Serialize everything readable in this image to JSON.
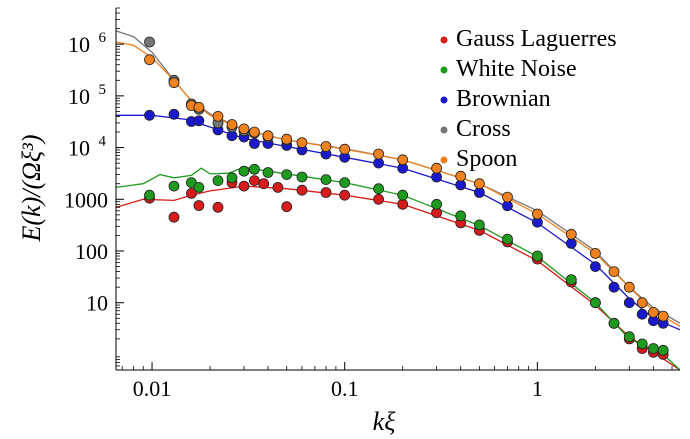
{
  "chart_data": {
    "type": "scatter",
    "title": "",
    "xlabel": "kξ",
    "ylabel": "E(k)/(Ωξ³)",
    "x_scale": "log",
    "y_scale": "log",
    "xlim": [
      0.0065,
      5.5
    ],
    "ylim": [
      0.5,
      5000000
    ],
    "x_ticks": [
      {
        "value": 0.01,
        "label": "0.01"
      },
      {
        "value": 0.1,
        "label": "0.1"
      },
      {
        "value": 1,
        "label": "1"
      }
    ],
    "y_ticks": [
      {
        "value": 10,
        "label": "10"
      },
      {
        "value": 100,
        "label": "100"
      },
      {
        "value": 1000,
        "label": "1000"
      },
      {
        "value": 10000,
        "label": "10",
        "exp": "4"
      },
      {
        "value": 100000,
        "label": "10",
        "exp": "5"
      },
      {
        "value": 1000000,
        "label": "10",
        "exp": "6"
      }
    ],
    "legend_position": "top-right",
    "grid": false,
    "series": [
      {
        "name": "Gauss Laguerres",
        "color": "#d81b1b",
        "points": [
          [
            0.0097,
            1050
          ],
          [
            0.013,
            450
          ],
          [
            0.016,
            1300
          ],
          [
            0.0175,
            760
          ],
          [
            0.022,
            700
          ],
          [
            0.026,
            2100
          ],
          [
            0.03,
            1800
          ],
          [
            0.034,
            2300
          ],
          [
            0.038,
            2000
          ],
          [
            0.045,
            1700
          ],
          [
            0.05,
            720
          ],
          [
            0.06,
            1500
          ],
          [
            0.08,
            1350
          ],
          [
            0.1,
            1200
          ],
          [
            0.15,
            1000
          ],
          [
            0.2,
            800
          ],
          [
            0.3,
            550
          ],
          [
            0.4,
            350
          ],
          [
            0.5,
            250
          ],
          [
            0.7,
            150
          ],
          [
            1.0,
            70
          ],
          [
            1.5,
            25
          ],
          [
            2.0,
            10
          ],
          [
            2.5,
            4
          ],
          [
            3.0,
            2.0
          ],
          [
            3.5,
            1.3
          ],
          [
            4.0,
            1.1
          ],
          [
            4.5,
            1.0
          ]
        ],
        "fit": [
          [
            0.0065,
            700
          ],
          [
            0.009,
            1000
          ],
          [
            0.013,
            950
          ],
          [
            0.016,
            1200
          ],
          [
            0.02,
            1450
          ],
          [
            0.03,
            1800
          ],
          [
            0.05,
            1600
          ],
          [
            0.1,
            1200
          ],
          [
            0.2,
            800
          ],
          [
            0.5,
            250
          ],
          [
            1.0,
            65
          ],
          [
            2.0,
            9
          ],
          [
            3.0,
            2.2
          ],
          [
            4.0,
            1.1
          ],
          [
            5.5,
            0.5
          ]
        ]
      },
      {
        "name": "White Noise",
        "color": "#1e9b1e",
        "points": [
          [
            0.0097,
            1200
          ],
          [
            0.013,
            1800
          ],
          [
            0.016,
            2100
          ],
          [
            0.0175,
            1700
          ],
          [
            0.022,
            2300
          ],
          [
            0.026,
            2600
          ],
          [
            0.03,
            3500
          ],
          [
            0.034,
            3800
          ],
          [
            0.04,
            3300
          ],
          [
            0.05,
            3000
          ],
          [
            0.06,
            2700
          ],
          [
            0.08,
            2400
          ],
          [
            0.1,
            2100
          ],
          [
            0.15,
            1600
          ],
          [
            0.2,
            1200
          ],
          [
            0.3,
            800
          ],
          [
            0.4,
            480
          ],
          [
            0.5,
            320
          ],
          [
            0.7,
            170
          ],
          [
            1.0,
            80
          ],
          [
            1.5,
            28
          ],
          [
            2.0,
            10
          ],
          [
            2.5,
            4
          ],
          [
            3.0,
            2.2
          ],
          [
            3.5,
            1.6
          ],
          [
            4.0,
            1.3
          ],
          [
            4.5,
            1.2
          ]
        ],
        "fit": [
          [
            0.0065,
            1700
          ],
          [
            0.009,
            2000
          ],
          [
            0.011,
            3000
          ],
          [
            0.013,
            2600
          ],
          [
            0.016,
            2900
          ],
          [
            0.018,
            4000
          ],
          [
            0.02,
            3100
          ],
          [
            0.025,
            3200
          ],
          [
            0.03,
            4200
          ],
          [
            0.04,
            3500
          ],
          [
            0.06,
            2800
          ],
          [
            0.1,
            2100
          ],
          [
            0.2,
            1200
          ],
          [
            0.5,
            310
          ],
          [
            1.0,
            78
          ],
          [
            2.0,
            10
          ],
          [
            3.0,
            2.0
          ],
          [
            4.5,
            1.0
          ],
          [
            5.5,
            0.5
          ]
        ]
      },
      {
        "name": "Brownian",
        "color": "#1a1acc",
        "points": [
          [
            0.0097,
            42000
          ],
          [
            0.013,
            44000
          ],
          [
            0.016,
            32000
          ],
          [
            0.0175,
            33000
          ],
          [
            0.022,
            22000
          ],
          [
            0.026,
            17000
          ],
          [
            0.03,
            16000
          ],
          [
            0.034,
            12000
          ],
          [
            0.04,
            12000
          ],
          [
            0.05,
            11000
          ],
          [
            0.06,
            9000
          ],
          [
            0.08,
            7500
          ],
          [
            0.1,
            6500
          ],
          [
            0.15,
            5000
          ],
          [
            0.2,
            4000
          ],
          [
            0.3,
            2700
          ],
          [
            0.4,
            1900
          ],
          [
            0.5,
            1350
          ],
          [
            0.7,
            750
          ],
          [
            1.0,
            360
          ],
          [
            1.5,
            140
          ],
          [
            2.0,
            50
          ],
          [
            2.5,
            20
          ],
          [
            3.0,
            10
          ],
          [
            3.5,
            6
          ],
          [
            4.0,
            4.5
          ],
          [
            4.5,
            4
          ]
        ],
        "fit": [
          [
            0.0065,
            42000
          ],
          [
            0.01,
            42000
          ],
          [
            0.015,
            35000
          ],
          [
            0.02,
            25000
          ],
          [
            0.03,
            15000
          ],
          [
            0.05,
            10500
          ],
          [
            0.1,
            6500
          ],
          [
            0.2,
            4000
          ],
          [
            0.5,
            1350
          ],
          [
            1.0,
            350
          ],
          [
            2.0,
            55
          ],
          [
            3.0,
            12
          ],
          [
            4.0,
            5
          ],
          [
            5.5,
            3
          ]
        ]
      },
      {
        "name": "Cross",
        "color": "#777777",
        "points": [
          [
            0.0097,
            1100000
          ],
          [
            0.013,
            200000
          ],
          [
            0.016,
            70000
          ],
          [
            0.0175,
            55000
          ],
          [
            0.022,
            30000
          ],
          [
            0.026,
            25000
          ],
          [
            0.03,
            21000
          ],
          [
            0.034,
            19000
          ],
          [
            0.04,
            16000
          ],
          [
            0.05,
            14000
          ]
        ],
        "fit": [
          [
            0.0065,
            1800000
          ],
          [
            0.008,
            1400000
          ],
          [
            0.01,
            700000
          ],
          [
            0.013,
            200000
          ],
          [
            0.016,
            80000
          ],
          [
            0.02,
            45000
          ],
          [
            0.03,
            22000
          ],
          [
            0.05,
            14000
          ],
          [
            0.1,
            9500
          ],
          [
            0.2,
            5800
          ],
          [
            0.5,
            2000
          ],
          [
            1.0,
            600
          ],
          [
            2.0,
            100
          ],
          [
            3.0,
            20
          ],
          [
            4.0,
            8
          ],
          [
            5.5,
            4
          ]
        ]
      },
      {
        "name": "Spoon",
        "color": "#f0821e",
        "points": [
          [
            0.0097,
            500000
          ],
          [
            0.013,
            180000
          ],
          [
            0.016,
            65000
          ],
          [
            0.0175,
            60000
          ],
          [
            0.022,
            40000
          ],
          [
            0.026,
            28000
          ],
          [
            0.03,
            23000
          ],
          [
            0.034,
            20000
          ],
          [
            0.04,
            17000
          ],
          [
            0.05,
            14500
          ],
          [
            0.06,
            12500
          ],
          [
            0.08,
            10500
          ],
          [
            0.1,
            9300
          ],
          [
            0.15,
            7500
          ],
          [
            0.2,
            5800
          ],
          [
            0.3,
            4000
          ],
          [
            0.4,
            2800
          ],
          [
            0.5,
            2000
          ],
          [
            0.7,
            1100
          ],
          [
            1.0,
            520
          ],
          [
            1.5,
            210
          ],
          [
            2.0,
            90
          ],
          [
            2.5,
            40
          ],
          [
            3.0,
            20
          ],
          [
            3.5,
            10
          ],
          [
            4.0,
            6.5
          ],
          [
            4.5,
            5.5
          ]
        ],
        "fit": [
          [
            0.0065,
            1100000
          ],
          [
            0.008,
            950000
          ],
          [
            0.01,
            550000
          ],
          [
            0.013,
            200000
          ],
          [
            0.016,
            80000
          ],
          [
            0.02,
            42000
          ],
          [
            0.03,
            22000
          ],
          [
            0.05,
            14000
          ],
          [
            0.1,
            9300
          ],
          [
            0.2,
            5800
          ],
          [
            0.5,
            2000
          ],
          [
            1.0,
            520
          ],
          [
            2.0,
            90
          ],
          [
            3.0,
            20
          ],
          [
            4.0,
            7
          ],
          [
            5.5,
            3.5
          ]
        ]
      }
    ]
  }
}
